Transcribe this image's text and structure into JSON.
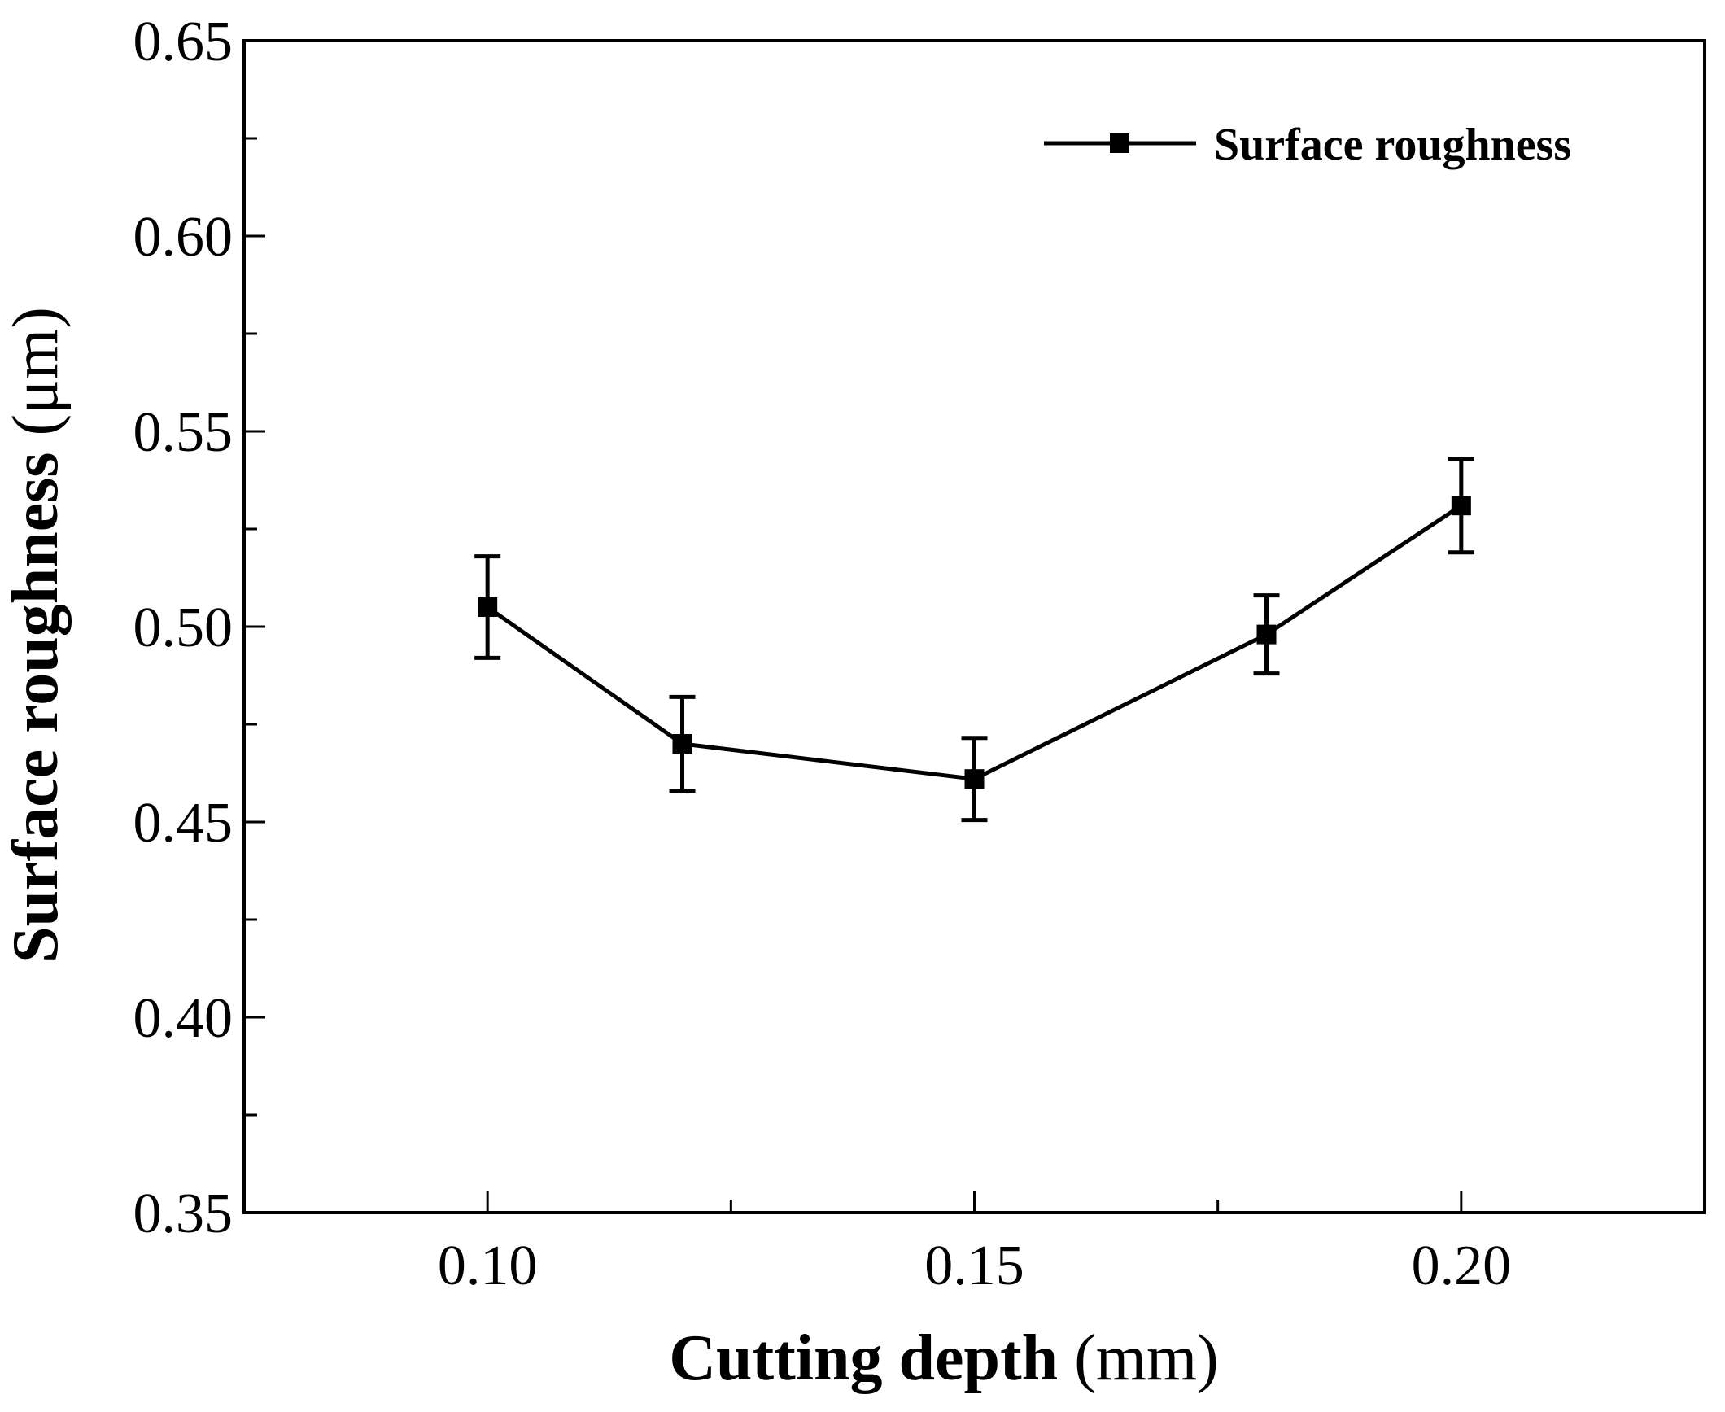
{
  "chart_data": {
    "type": "line",
    "x": [
      0.1,
      0.12,
      0.15,
      0.18,
      0.2
    ],
    "series": [
      {
        "name": "Surface roughness",
        "values": [
          0.505,
          0.47,
          0.461,
          0.498,
          0.531
        ],
        "errors": [
          0.013,
          0.012,
          0.0105,
          0.01,
          0.012
        ]
      }
    ],
    "xlim": [
      0.075,
      0.225
    ],
    "ylim": [
      0.35,
      0.65
    ],
    "x_major_ticks": [
      0.1,
      0.15,
      0.2
    ],
    "x_minor_ticks": [
      0.125,
      0.175
    ],
    "y_major_ticks": [
      0.35,
      0.4,
      0.45,
      0.5,
      0.55,
      0.6,
      0.65
    ],
    "y_minor_ticks": [
      0.375,
      0.425,
      0.475,
      0.525,
      0.575,
      0.625
    ],
    "x_tick_labels": [
      "0.10",
      "0.15",
      "0.20"
    ],
    "y_tick_labels": [
      "0.35",
      "0.40",
      "0.45",
      "0.50",
      "0.55",
      "0.60",
      "0.65"
    ],
    "xlabel_bold": "Cutting depth",
    "xlabel_unit": "(mm)",
    "ylabel_bold": "Surface roughness",
    "ylabel_unit": "(μm)",
    "legend_label": "Surface roughness",
    "legend_position": "top-right",
    "grid": false,
    "line_color": "#000000"
  }
}
